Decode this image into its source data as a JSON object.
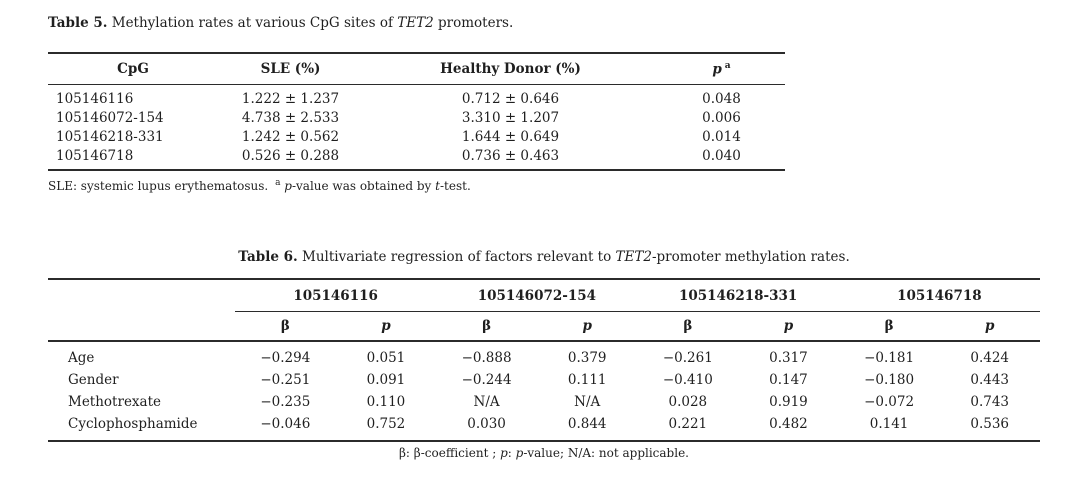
{
  "page": {
    "background": "#ffffff",
    "text_color": "#1f1f1f",
    "rule_color": "#2b2b2b"
  },
  "table5": {
    "caption_label": "Table 5.",
    "caption_segments": [
      {
        "t": " Methylation rates at various CpG sites of "
      },
      {
        "t": "TET2",
        "i": true
      },
      {
        "t": " promoters."
      }
    ],
    "headers": {
      "cpg": "CpG",
      "sle": "SLE (%)",
      "healthy_donor": "Healthy Donor (%)",
      "p_segments": [
        {
          "t": "p",
          "i": true,
          "b": true
        },
        {
          "t": "a",
          "sup": true,
          "b": true
        }
      ]
    },
    "rows": [
      [
        "105146116",
        "1.222 ± 1.237",
        "0.712 ± 0.646",
        "0.048"
      ],
      [
        "105146072-154",
        "4.738 ± 2.533",
        "3.310 ± 1.207",
        "0.006"
      ],
      [
        "105146218-331",
        "1.242 ± 0.562",
        "1.644 ± 0.649",
        "0.014"
      ],
      [
        "105146718",
        "0.526 ± 0.288",
        "0.736 ± 0.463",
        "0.040"
      ]
    ],
    "footnote_segments": [
      {
        "t": "SLE: systemic lupus erythematosus. "
      },
      {
        "t": "a",
        "sup": true
      },
      {
        "t": " "
      },
      {
        "t": "p",
        "i": true
      },
      {
        "t": "-value was obtained by "
      },
      {
        "t": "t",
        "i": true
      },
      {
        "t": "-test."
      }
    ]
  },
  "table6": {
    "caption_label": "Table 6.",
    "caption_segments": [
      {
        "t": " Multivariate regression of factors relevant to "
      },
      {
        "t": "TET2",
        "i": true
      },
      {
        "t": "-promoter methylation rates."
      }
    ],
    "groups": [
      "105146116",
      "105146072-154",
      "105146218-331",
      "105146718"
    ],
    "beta_label": "β",
    "p_label": "p",
    "rows": [
      {
        "label": "Age",
        "values": [
          "−0.294",
          "0.051",
          "−0.888",
          "0.379",
          "−0.261",
          "0.317",
          "−0.181",
          "0.424"
        ]
      },
      {
        "label": "Gender",
        "values": [
          "−0.251",
          "0.091",
          "−0.244",
          "0.111",
          "−0.410",
          "0.147",
          "−0.180",
          "0.443"
        ]
      },
      {
        "label": "Methotrexate",
        "values": [
          "−0.235",
          "0.110",
          "N/A",
          "N/A",
          "0.028",
          "0.919",
          "−0.072",
          "0.743"
        ]
      },
      {
        "label": "Cyclophosphamide",
        "values": [
          "−0.046",
          "0.752",
          "0.030",
          "0.844",
          "0.221",
          "0.482",
          "0.141",
          "0.536"
        ]
      }
    ],
    "footnote_segments": [
      {
        "t": "β: β-coefficient ; "
      },
      {
        "t": "p",
        "i": true
      },
      {
        "t": ": "
      },
      {
        "t": "p",
        "i": true
      },
      {
        "t": "-value; N/A: not applicable."
      }
    ]
  }
}
